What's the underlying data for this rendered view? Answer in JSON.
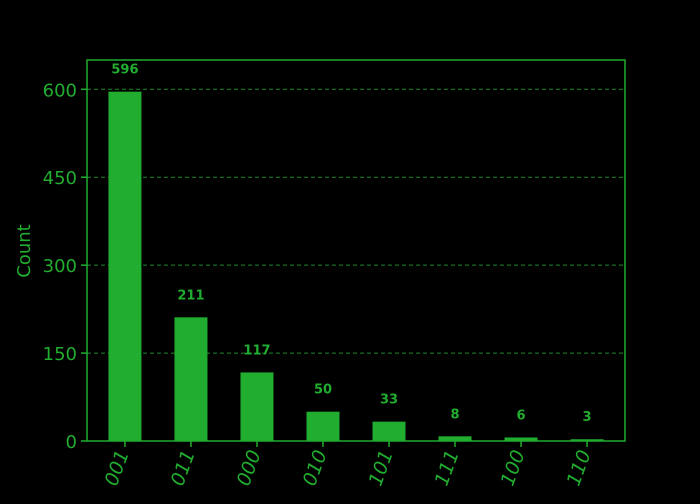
{
  "chart_data": {
    "type": "bar",
    "title": "",
    "xlabel": "",
    "ylabel": "Count",
    "categories": [
      "001",
      "011",
      "000",
      "010",
      "101",
      "111",
      "100",
      "110"
    ],
    "values": [
      596,
      211,
      117,
      50,
      33,
      8,
      6,
      3
    ],
    "yticks": [
      0,
      150,
      300,
      450,
      600
    ],
    "ylim": [
      0,
      650
    ],
    "grid": "horizontal-dashed",
    "legend": "none",
    "colors": {
      "background": "#000000",
      "bar": "#21ad2f",
      "axis": "#21ad2f",
      "text": "#21ad2f",
      "grid": "#1f8a28"
    }
  }
}
